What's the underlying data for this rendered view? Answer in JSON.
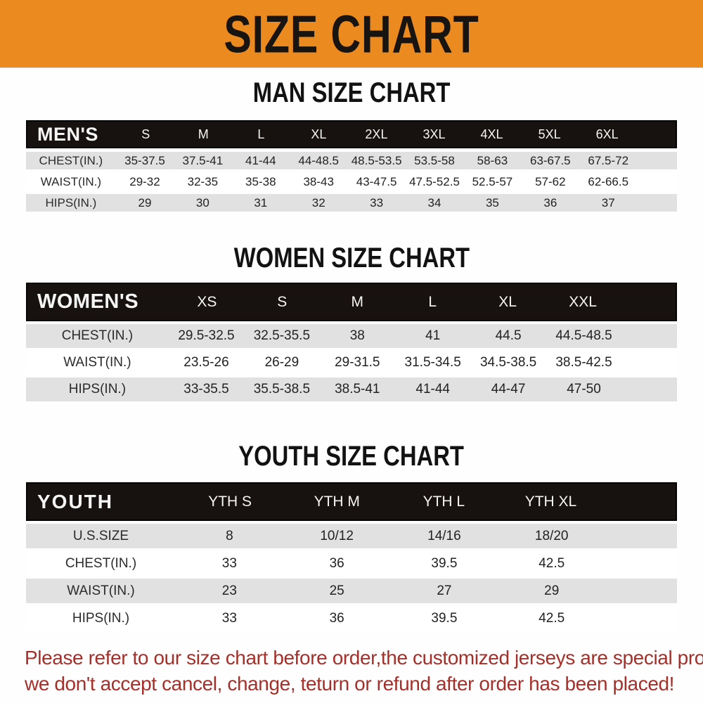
{
  "banner": {
    "title": "SIZE CHART"
  },
  "sections": [
    {
      "id": "men",
      "title": "MAN SIZE CHART",
      "header_label": "MEN'S",
      "columns": [
        "S",
        "M",
        "L",
        "XL",
        "2XL",
        "3XL",
        "4XL",
        "5XL",
        "6XL"
      ],
      "rows": [
        {
          "label": "CHEST(IN.)",
          "values": [
            "35-37.5",
            "37.5-41",
            "41-44",
            "44-48.5",
            "48.5-53.5",
            "53.5-58",
            "58-63",
            "63-67.5",
            "67.5-72"
          ]
        },
        {
          "label": "WAIST(IN.)",
          "values": [
            "29-32",
            "32-35",
            "35-38",
            "38-43",
            "43-47.5",
            "47.5-52.5",
            "52.5-57",
            "57-62",
            "62-66.5"
          ]
        },
        {
          "label": "HIPS(IN.)",
          "values": [
            "29",
            "30",
            "31",
            "32",
            "33",
            "34",
            "35",
            "36",
            "37"
          ]
        }
      ]
    },
    {
      "id": "women",
      "title": "WOMEN SIZE CHART",
      "header_label": "WOMEN'S",
      "columns": [
        "XS",
        "S",
        "M",
        "L",
        "XL",
        "XXL"
      ],
      "rows": [
        {
          "label": "CHEST(IN.)",
          "values": [
            "29.5-32.5",
            "32.5-35.5",
            "38",
            "41",
            "44.5",
            "44.5-48.5"
          ]
        },
        {
          "label": "WAIST(IN.)",
          "values": [
            "23.5-26",
            "26-29",
            "29-31.5",
            "31.5-34.5",
            "34.5-38.5",
            "38.5-42.5"
          ]
        },
        {
          "label": "HIPS(IN.)",
          "values": [
            "33-35.5",
            "35.5-38.5",
            "38.5-41",
            "41-44",
            "44-47",
            "47-50"
          ]
        }
      ]
    },
    {
      "id": "youth",
      "title": "YOUTH SIZE CHART",
      "header_label": "YOUTH",
      "columns": [
        "YTH S",
        "YTH M",
        "YTH L",
        "YTH XL"
      ],
      "rows": [
        {
          "label": "U.S.SIZE",
          "values": [
            "8",
            "10/12",
            "14/16",
            "18/20"
          ]
        },
        {
          "label": "CHEST(IN.)",
          "values": [
            "33",
            "36",
            "39.5",
            "42.5"
          ]
        },
        {
          "label": "WAIST(IN.)",
          "values": [
            "23",
            "25",
            "27",
            "29"
          ]
        },
        {
          "label": "HIPS(IN.)",
          "values": [
            "33",
            "36",
            "39.5",
            "42.5"
          ]
        }
      ]
    }
  ],
  "footer": {
    "line1": "Please refer to our size chart before order,the customized jerseys are special products,",
    "line2": "we don't accept cancel, change, teturn or refund after order has been placed!"
  },
  "colors": {
    "banner_orange": "#EB8A1E",
    "header_bar_black": "#17120F",
    "row_gray": "#E2E1E1",
    "row_white": "#FFFFFF",
    "footer_red": "#A5302A",
    "title_black": "#121212"
  }
}
